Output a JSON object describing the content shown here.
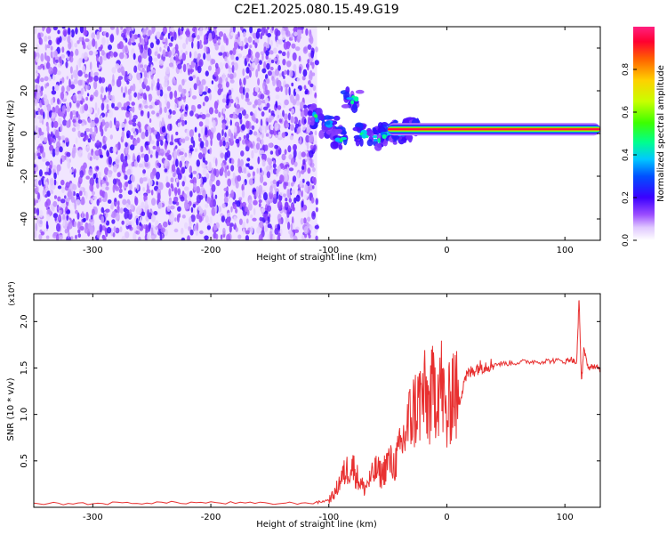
{
  "title": "C2E1.2025.080.15.49.G19",
  "colorbar": {
    "label": "Normalized spectral amplitude",
    "ticks": [
      "0.0",
      "0.2",
      "0.4",
      "0.6",
      "0.8"
    ],
    "range": [
      0,
      1
    ]
  },
  "chart_data": [
    {
      "type": "heatmap",
      "title": "C2E1.2025.080.15.49.G19",
      "xlabel": "Height of straight line (km)",
      "ylabel": "Frequency (Hz)",
      "xlim": [
        -350,
        130
      ],
      "ylim": [
        -50,
        50
      ],
      "xticks": [
        -300,
        -200,
        -100,
        0,
        100
      ],
      "yticks": [
        -40,
        -20,
        0,
        20,
        40
      ],
      "colorbar_label": "Normalized spectral amplitude",
      "features": {
        "noise_region_x": [
          -350,
          -110
        ],
        "noise_amplitude": 0.15,
        "signal_line_frequency_hz": 2,
        "signal_line_x": [
          -20,
          130
        ],
        "signal_line_amplitude": 0.95,
        "transition_points": [
          {
            "x": -110,
            "y": 8
          },
          {
            "x": -100,
            "y": 4
          },
          {
            "x": -90,
            "y": -2
          },
          {
            "x": -80,
            "y": 16
          },
          {
            "x": -70,
            "y": 0
          },
          {
            "x": -60,
            "y": -2
          },
          {
            "x": -50,
            "y": 0
          },
          {
            "x": -40,
            "y": 1
          },
          {
            "x": -30,
            "y": 2
          }
        ]
      }
    },
    {
      "type": "line",
      "xlabel": "Height of straight line (km)",
      "ylabel": "SNR (10 * v/v)",
      "yscale_label": "(x10⁴)",
      "xlim": [
        -350,
        130
      ],
      "ylim": [
        0,
        2.3
      ],
      "xticks": [
        -300,
        -200,
        -100,
        0,
        100
      ],
      "yticks": [
        0.5,
        1.0,
        1.5,
        2.0
      ],
      "series": [
        {
          "color": "#e83030",
          "x": [
            -350,
            -300,
            -250,
            -200,
            -150,
            -110,
            -100,
            -95,
            -90,
            -85,
            -80,
            -75,
            -70,
            -65,
            -60,
            -55,
            -50,
            -45,
            -40,
            -35,
            -30,
            -25,
            -20,
            -15,
            -10,
            -5,
            0,
            5,
            10,
            15,
            20,
            25,
            30,
            35,
            40,
            50,
            60,
            70,
            80,
            90,
            100,
            105,
            110,
            112,
            114,
            116,
            120,
            125,
            130
          ],
          "y": [
            0.04,
            0.04,
            0.05,
            0.05,
            0.04,
            0.05,
            0.08,
            0.15,
            0.3,
            0.4,
            0.45,
            0.3,
            0.2,
            0.3,
            0.4,
            0.35,
            0.5,
            0.45,
            0.6,
            0.8,
            1.0,
            1.1,
            1.2,
            1.1,
            1.3,
            1.35,
            0.9,
            1.35,
            1.1,
            1.4,
            1.45,
            1.5,
            1.52,
            1.53,
            1.54,
            1.55,
            1.56,
            1.57,
            1.57,
            1.58,
            1.57,
            1.6,
            1.55,
            2.25,
            1.35,
            1.7,
            1.5,
            1.52,
            1.48
          ]
        }
      ]
    }
  ]
}
